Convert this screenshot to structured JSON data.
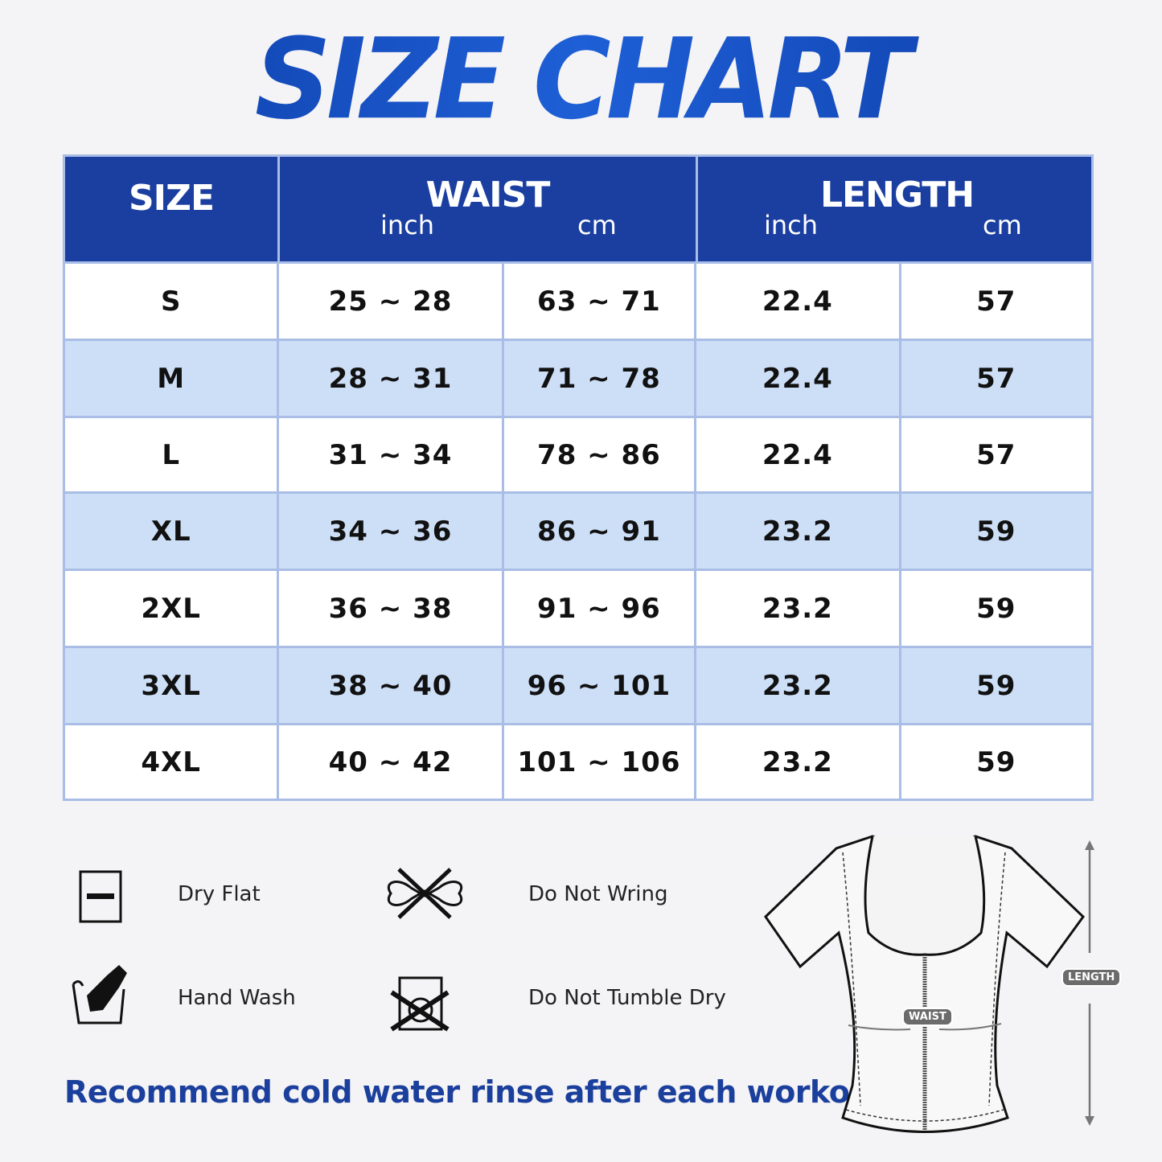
{
  "title": "SIZE CHART",
  "table": {
    "headers": {
      "size": "SIZE",
      "waist": "WAIST",
      "length": "LENGTH",
      "inch": "inch",
      "cm": "cm"
    },
    "rows": [
      [
        "S",
        "25 ~ 28",
        "63 ~ 71",
        "22.4",
        "57"
      ],
      [
        "M",
        "28 ~ 31",
        "71 ~ 78",
        "22.4",
        "57"
      ],
      [
        "L",
        "31 ~ 34",
        "78 ~ 86",
        "22.4",
        "57"
      ],
      [
        "XL",
        "34 ~ 36",
        "86 ~ 91",
        "23.2",
        "59"
      ],
      [
        "2XL",
        "36 ~ 38",
        "91 ~ 96",
        "23.2",
        "59"
      ],
      [
        "3XL",
        "38 ~ 40",
        "96 ~ 101",
        "23.2",
        "59"
      ],
      [
        "4XL",
        "40 ~ 42",
        "101 ~ 106",
        "23.2",
        "59"
      ]
    ]
  },
  "care": [
    {
      "label": "Dry Flat",
      "icon": "dry-flat-icon"
    },
    {
      "label": "Do Not Wring",
      "icon": "do-not-wring-icon"
    },
    {
      "label": "Hand Wash",
      "icon": "hand-wash-icon"
    },
    {
      "label": "Do Not Tumble Dry",
      "icon": "do-not-tumble-dry-icon"
    }
  ],
  "recommendation": "Recommend cold water rinse after each workout.",
  "diagram": {
    "waist_label": "WAIST",
    "length_label": "LENGTH"
  },
  "colors": {
    "header": "#1b3fa0",
    "alt_row": "#cddff7",
    "title": "#1447b8"
  }
}
